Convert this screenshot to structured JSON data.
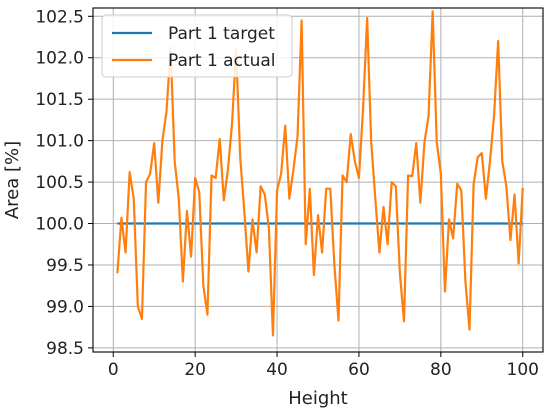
{
  "chart_data": {
    "type": "line",
    "xlabel": "Height",
    "ylabel": "Area [%]",
    "xlim": [
      -4.95,
      104.95
    ],
    "ylim": [
      98.45,
      102.6
    ],
    "xticks": [
      0,
      20,
      40,
      60,
      80,
      100
    ],
    "xtick_labels": [
      "0",
      "20",
      "40",
      "60",
      "80",
      "100"
    ],
    "yticks": [
      98.5,
      99.0,
      99.5,
      100.0,
      100.5,
      101.0,
      101.5,
      102.0,
      102.5
    ],
    "ytick_labels": [
      "98.5",
      "99.0",
      "99.5",
      "100.0",
      "100.5",
      "101.0",
      "101.5",
      "102.0",
      "102.5"
    ],
    "grid": true,
    "legend_position": "top-left",
    "series": [
      {
        "name": "Part 1 target",
        "color": "#1f77b4",
        "x": [
          1,
          100
        ],
        "y": [
          100.0,
          100.0
        ]
      },
      {
        "name": "Part 1 actual",
        "color": "#ff7f0e",
        "x": [
          1,
          2,
          3,
          4,
          5,
          6,
          7,
          8,
          9,
          10,
          11,
          12,
          13,
          14,
          15,
          16,
          17,
          18,
          19,
          20,
          21,
          22,
          23,
          24,
          25,
          26,
          27,
          28,
          29,
          30,
          31,
          32,
          33,
          34,
          35,
          36,
          37,
          38,
          39,
          40,
          41,
          42,
          43,
          44,
          45,
          46,
          47,
          48,
          49,
          50,
          51,
          52,
          53,
          54,
          55,
          56,
          57,
          58,
          59,
          60,
          61,
          62,
          63,
          64,
          65,
          66,
          67,
          68,
          69,
          70,
          71,
          72,
          73,
          74,
          75,
          76,
          77,
          78,
          79,
          80,
          81,
          82,
          83,
          84,
          85,
          86,
          87,
          88,
          89,
          90,
          91,
          92,
          93,
          94,
          95,
          96,
          97,
          98,
          99,
          100
        ],
        "y": [
          99.4,
          100.07,
          99.65,
          100.62,
          100.3,
          99.0,
          98.85,
          100.5,
          100.6,
          100.97,
          100.25,
          101.0,
          101.35,
          102.12,
          100.75,
          100.3,
          99.3,
          100.15,
          99.6,
          100.55,
          100.38,
          99.25,
          98.9,
          100.58,
          100.55,
          101.02,
          100.28,
          100.65,
          101.2,
          102.1,
          100.8,
          100.15,
          99.42,
          100.05,
          99.65,
          100.45,
          100.35,
          99.95,
          98.65,
          100.4,
          100.6,
          101.18,
          100.3,
          100.65,
          101.05,
          102.45,
          99.75,
          100.42,
          99.38,
          100.1,
          99.65,
          100.42,
          100.42,
          99.5,
          98.83,
          100.58,
          100.5,
          101.08,
          100.75,
          100.55,
          101.38,
          102.48,
          100.98,
          100.3,
          99.65,
          100.2,
          99.75,
          100.5,
          100.45,
          99.4,
          98.82,
          100.58,
          100.57,
          100.97,
          100.25,
          100.98,
          101.3,
          102.56,
          100.98,
          100.6,
          99.18,
          100.05,
          99.82,
          100.48,
          100.4,
          99.3,
          98.72,
          100.47,
          100.8,
          100.85,
          100.3,
          100.75,
          101.3,
          102.2,
          100.75,
          100.45,
          99.8,
          100.35,
          99.52,
          100.43
        ]
      }
    ]
  }
}
